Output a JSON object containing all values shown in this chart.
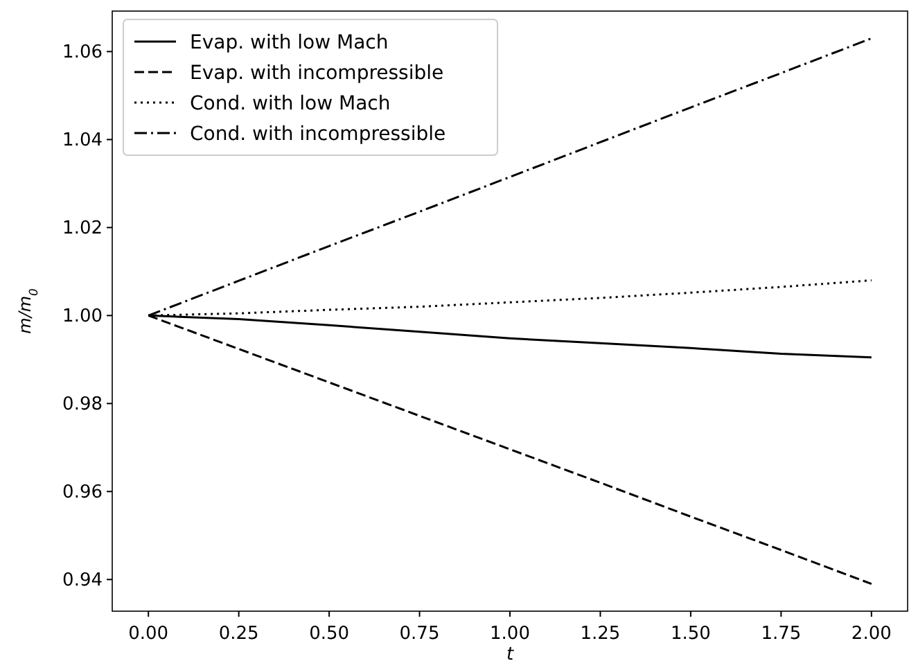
{
  "chart_data": {
    "type": "line",
    "xlabel": "t",
    "ylabel": "m/m$_{0}$",
    "x": [
      0,
      0.25,
      0.5,
      0.75,
      1,
      1.25,
      1.5,
      1.75,
      2
    ],
    "series": [
      {
        "name": "Evap. with low Mach",
        "color": "#000000",
        "line_style": "solid",
        "values": [
          1,
          0.9992,
          0.9978,
          0.9963,
          0.9948,
          0.9937,
          0.9926,
          0.9913,
          0.9905
        ]
      },
      {
        "name": "Evap. with incompressible",
        "color": "#000000",
        "line_style": "dashed",
        "values": [
          1,
          0.9924,
          0.9848,
          0.9772,
          0.9696,
          0.962,
          0.9543,
          0.9467,
          0.939
        ]
      },
      {
        "name": "Cond. with low Mach",
        "color": "#000000",
        "line_style": "dotted",
        "values": [
          1,
          1.0005,
          1.0013,
          1.002,
          1.003,
          1.004,
          1.0052,
          1.0065,
          1.008
        ]
      },
      {
        "name": "Cond. with incompressible",
        "color": "#000000",
        "line_style": "dashdot",
        "values": [
          1,
          1.0079,
          1.0158,
          1.0236,
          1.0315,
          1.0394,
          1.0473,
          1.0551,
          1.063
        ]
      }
    ],
    "xlim": [
      -0.1,
      2.1
    ],
    "xticks": [
      {
        "value": 0,
        "label": "0.00"
      },
      {
        "value": 0.25,
        "label": "0.25"
      },
      {
        "value": 0.5,
        "label": "0.50"
      },
      {
        "value": 0.75,
        "label": "0.75"
      },
      {
        "value": 1,
        "label": "1.00"
      },
      {
        "value": 1.25,
        "label": "1.25"
      },
      {
        "value": 1.5,
        "label": "1.50"
      },
      {
        "value": 1.75,
        "label": "1.75"
      },
      {
        "value": 2,
        "label": "2.00"
      }
    ],
    "ylim": [
      0.9328,
      1.0692
    ],
    "yticks": [
      {
        "value": 0.94,
        "label": "0.94"
      },
      {
        "value": 0.96,
        "label": "0.96"
      },
      {
        "value": 0.98,
        "label": "0.98"
      },
      {
        "value": 1,
        "label": "1.00"
      },
      {
        "value": 1.02,
        "label": "1.02"
      },
      {
        "value": 1.04,
        "label": "1.04"
      },
      {
        "value": 1.06,
        "label": "1.06"
      }
    ],
    "legend": "top left",
    "grid": false,
    "marker": "none"
  }
}
